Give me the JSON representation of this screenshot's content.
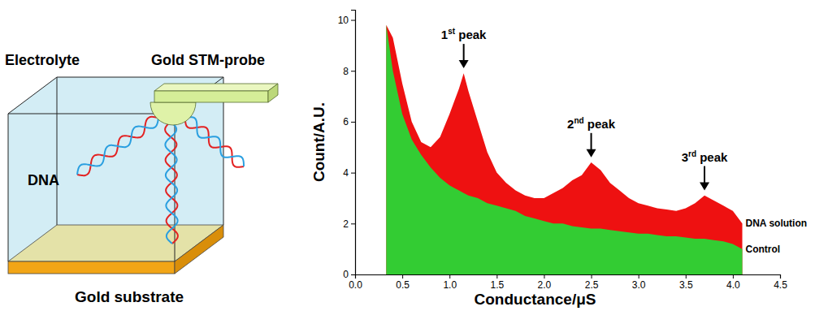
{
  "diagram": {
    "electrolyte": "Electrolyte",
    "probe": "Gold STM-probe",
    "dna": "DNA",
    "substrate": "Gold substrate"
  },
  "chart_data": {
    "type": "area",
    "x_label": "Conductance/μS",
    "y_label": "Count/A.U.",
    "x": [
      0.33,
      0.4,
      0.5,
      0.6,
      0.7,
      0.8,
      0.9,
      1.0,
      1.05,
      1.1,
      1.15,
      1.2,
      1.3,
      1.4,
      1.5,
      1.6,
      1.7,
      1.8,
      1.9,
      2.0,
      2.1,
      2.2,
      2.3,
      2.4,
      2.5,
      2.6,
      2.7,
      2.8,
      2.9,
      3.0,
      3.1,
      3.2,
      3.3,
      3.4,
      3.5,
      3.6,
      3.7,
      3.8,
      3.9,
      4.0,
      4.1
    ],
    "series": [
      {
        "name": "DNA solution",
        "color": "#ee1111",
        "values": [
          9.8,
          9.3,
          7.5,
          6.0,
          5.2,
          5.0,
          5.4,
          6.3,
          6.8,
          7.3,
          7.9,
          7.2,
          6.0,
          4.8,
          4.0,
          3.6,
          3.3,
          3.1,
          3.0,
          3.0,
          3.2,
          3.4,
          3.7,
          3.9,
          4.4,
          4.1,
          3.6,
          3.3,
          3.0,
          2.8,
          2.7,
          2.6,
          2.55,
          2.5,
          2.6,
          2.8,
          3.1,
          2.9,
          2.7,
          2.5,
          2.0
        ]
      },
      {
        "name": "Control",
        "color": "#33cc33",
        "values": [
          9.8,
          8.0,
          6.3,
          5.3,
          4.7,
          4.2,
          3.8,
          3.5,
          3.4,
          3.3,
          3.2,
          3.1,
          3.0,
          2.8,
          2.7,
          2.6,
          2.5,
          2.3,
          2.2,
          2.1,
          2.0,
          2.0,
          1.9,
          1.85,
          1.8,
          1.8,
          1.75,
          1.7,
          1.65,
          1.6,
          1.6,
          1.55,
          1.5,
          1.5,
          1.45,
          1.4,
          1.4,
          1.35,
          1.3,
          1.2,
          1.0
        ]
      }
    ],
    "xlim": [
      0,
      4.5
    ],
    "xticks": [
      {
        "value": 0,
        "label": "0.0"
      },
      0.5,
      {
        "value": 1,
        "label": "1.0"
      },
      1.5,
      {
        "value": 2,
        "label": "2.0"
      },
      2.5,
      {
        "value": 3,
        "label": "3.0"
      },
      3.5,
      {
        "value": 4,
        "label": "4.0"
      },
      4.5
    ],
    "ylim": [
      0,
      10.4
    ],
    "yticks": [
      0,
      2,
      4,
      6,
      8,
      10
    ],
    "grid": false,
    "annotations": [
      {
        "text": "1st peak",
        "x": 1.15,
        "y": 8.1
      },
      {
        "text": "2nd peak",
        "x": 2.5,
        "y": 4.6
      },
      {
        "text": "3rd peak",
        "x": 3.7,
        "y": 3.3
      }
    ]
  }
}
